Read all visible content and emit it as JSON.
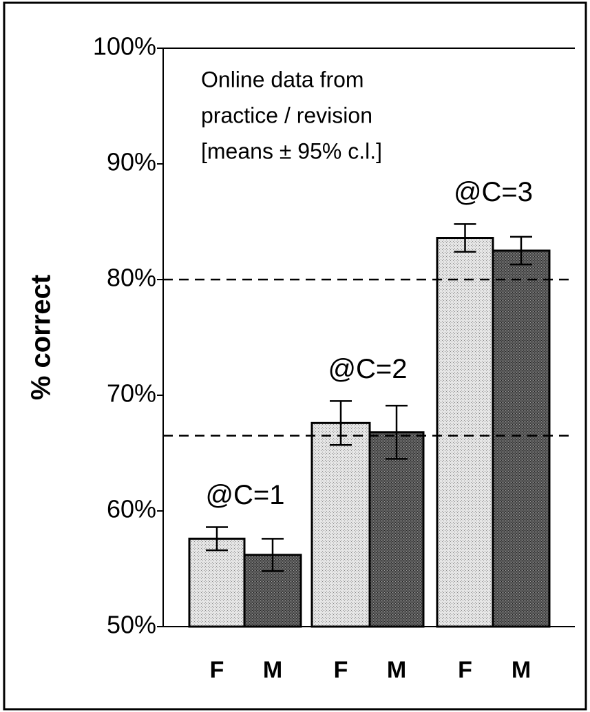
{
  "chart_data": {
    "type": "bar",
    "y_label": "% correct",
    "notes": [
      "Online data from",
      "practice / revision",
      "[means ± 95% c.l.]"
    ],
    "categories": [
      "F",
      "M",
      "F",
      "M",
      "F",
      "M"
    ],
    "values": [
      57.6,
      56.2,
      67.6,
      66.8,
      83.6,
      82.5
    ],
    "errors": [
      1.0,
      1.4,
      1.9,
      2.3,
      1.2,
      1.2
    ],
    "colors": [
      "#e6e6e6",
      "#5a5a5a",
      "#e6e6e6",
      "#5a5a5a",
      "#e6e6e6",
      "#5a5a5a"
    ],
    "group_labels": [
      "@C=1",
      "@C=2",
      "@C=3"
    ],
    "reference_lines": [
      80,
      66.5
    ],
    "ylim": [
      50,
      100
    ],
    "yticks": [
      {
        "value": 50,
        "label": "50%"
      },
      {
        "value": 60,
        "label": "60%"
      },
      {
        "value": 70,
        "label": "70%"
      },
      {
        "value": 80,
        "label": "80%"
      },
      {
        "value": 90,
        "label": "90%"
      },
      {
        "value": 100,
        "label": "100%"
      }
    ]
  }
}
